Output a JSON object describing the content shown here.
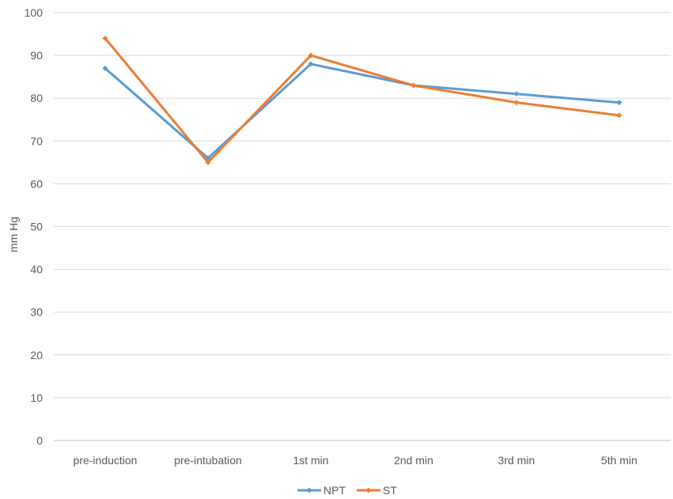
{
  "chart_data": {
    "type": "line",
    "title": "",
    "xlabel": "",
    "ylabel": "mm Hg",
    "categories": [
      "pre-induction",
      "pre-intubation",
      "1st min",
      "2nd min",
      "3rd min",
      "5th min"
    ],
    "series": [
      {
        "name": "NPT",
        "color": "#5B9BD5",
        "values": [
          87,
          66,
          88,
          83,
          81,
          79
        ]
      },
      {
        "name": "ST",
        "color": "#ED7D31",
        "values": [
          94,
          65,
          90,
          83,
          79,
          76
        ]
      }
    ],
    "ylim": [
      0,
      100
    ],
    "yticks": [
      0,
      10,
      20,
      30,
      40,
      50,
      60,
      70,
      80,
      90,
      100
    ],
    "grid": true,
    "legend_position": "bottom"
  }
}
